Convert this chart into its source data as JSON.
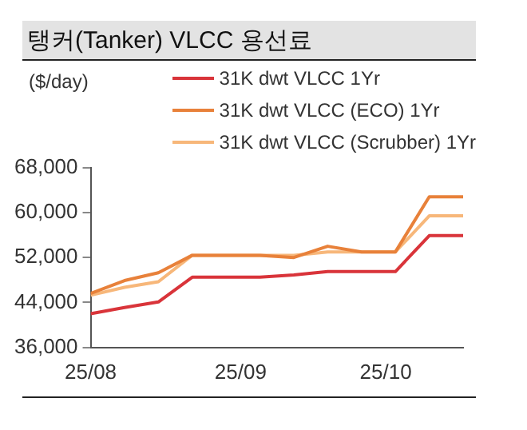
{
  "chart_data": {
    "type": "line",
    "title": "탱커(Tanker) VLCC 용선료",
    "ylabel": "($/day)",
    "x": [
      "--08-01",
      "--08-08",
      "--08-15",
      "--08-22",
      "--08-29",
      "--09-05",
      "--09-12",
      "--09-19",
      "--09-26",
      "--10-03",
      "--10-10",
      "--10-17"
    ],
    "xlim": [
      "--08-01",
      "--10-17"
    ],
    "xticks": [
      {
        "value": "--08-01",
        "label": "25/08"
      },
      {
        "value": "--09-01",
        "label": "25/09"
      },
      {
        "value": "--10-01",
        "label": "25/10"
      }
    ],
    "ylim": [
      36000,
      68000
    ],
    "yticks": [
      {
        "value": 36000,
        "label": "36,000"
      },
      {
        "value": 44000,
        "label": "44,000"
      },
      {
        "value": 52000,
        "label": "52,000"
      },
      {
        "value": 60000,
        "label": "60,000"
      },
      {
        "value": 68000,
        "label": "68,000"
      }
    ],
    "series": [
      {
        "name": "31K dwt VLCC 1Yr",
        "color": "#d9343a",
        "values": [
          42000,
          43100,
          44100,
          48500,
          48500,
          48500,
          48900,
          49500,
          49500,
          49500,
          55900,
          55900
        ]
      },
      {
        "name": "31K dwt VLCC (ECO) 1Yr",
        "color": "#e8813a",
        "values": [
          45600,
          47900,
          49300,
          52400,
          52400,
          52400,
          52000,
          54000,
          53000,
          53000,
          62800,
          62800
        ]
      },
      {
        "name": "31K dwt VLCC (Scrubber) 1Yr",
        "color": "#f7b77a",
        "values": [
          45300,
          46700,
          47700,
          52400,
          52400,
          52400,
          52400,
          53000,
          53000,
          53000,
          59400,
          59400
        ]
      }
    ],
    "legend": "top right",
    "marker": "none",
    "line_style": "solid"
  }
}
